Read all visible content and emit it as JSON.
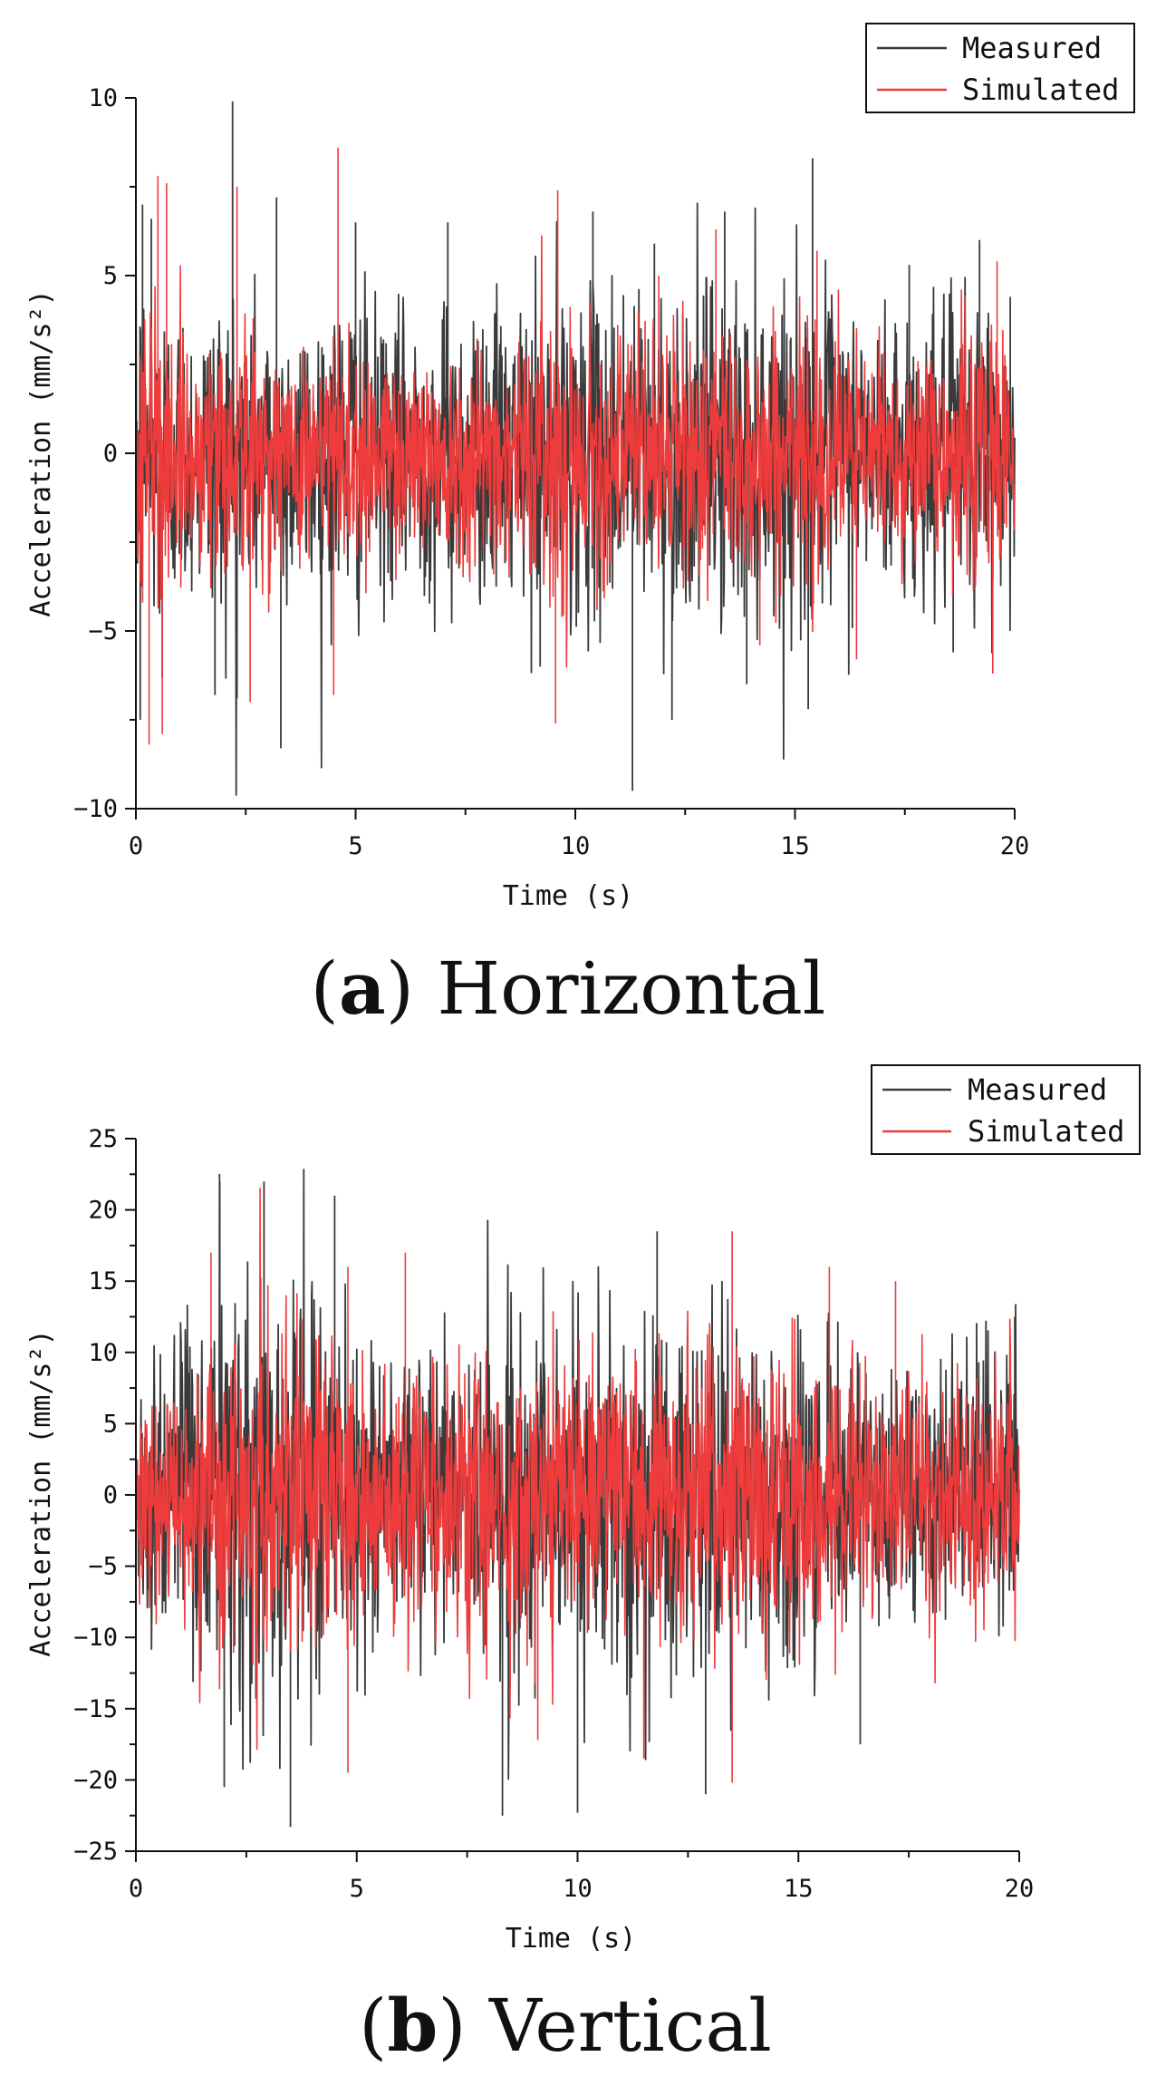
{
  "chart_data": [
    {
      "type": "line",
      "panel_label": "a",
      "caption": "Horizontal",
      "xlabel": "Time (s)",
      "ylabel": "Acceleration (mm/s²)",
      "xlim": [
        0,
        20
      ],
      "ylim": [
        -10,
        10
      ],
      "xticks": [
        0,
        5,
        10,
        15,
        20
      ],
      "yticks": [
        -10,
        -5,
        0,
        5,
        10
      ],
      "legend_position": "top-right",
      "series": [
        {
          "name": "Measured",
          "color": "#3a3a3a",
          "envelope": {
            "t": [
              0,
              0.5,
              1,
              1.5,
              2,
              2.5,
              3,
              3.5,
              4,
              4.5,
              5,
              5.5,
              6,
              6.5,
              7,
              7.5,
              8,
              8.5,
              9,
              9.5,
              10,
              10.5,
              11,
              11.5,
              12,
              12.5,
              13,
              13.5,
              14,
              14.5,
              15,
              15.5,
              16,
              16.5,
              17,
              17.5,
              18,
              18.5,
              19,
              19.5,
              20
            ],
            "amp": [
              5.0,
              4.5,
              3.8,
              3.6,
              4.5,
              4.2,
              3.6,
              3.6,
              3.7,
              4.0,
              4.1,
              3.5,
              3.4,
              3.5,
              3.7,
              3.8,
              3.6,
              3.8,
              3.9,
              4.3,
              3.9,
              4.1,
              4.4,
              4.2,
              4.1,
              4.2,
              4.3,
              4.5,
              4.2,
              4.1,
              4.0,
              4.1,
              3.9,
              3.6,
              3.6,
              3.5,
              3.5,
              3.6,
              4.2,
              4.0,
              3.3
            ]
          },
          "peaks": [
            [
              0.15,
              7.0
            ],
            [
              0.1,
              -7.5
            ],
            [
              0.35,
              6.6
            ],
            [
              0.6,
              -6.3
            ],
            [
              1.8,
              -6.8
            ],
            [
              2.2,
              9.9
            ],
            [
              2.3,
              -6.9
            ],
            [
              3.3,
              -8.3
            ],
            [
              3.2,
              7.2
            ],
            [
              5.0,
              6.5
            ],
            [
              7.1,
              6.5
            ],
            [
              9.2,
              -6.0
            ],
            [
              10.4,
              6.8
            ],
            [
              11.3,
              -9.5
            ],
            [
              11.8,
              5.9
            ],
            [
              12.2,
              -7.5
            ],
            [
              13.4,
              6.8
            ],
            [
              13.9,
              -6.5
            ],
            [
              15.4,
              8.3
            ],
            [
              15.3,
              -7.2
            ],
            [
              17.6,
              5.3
            ],
            [
              18.6,
              -5.6
            ],
            [
              19.2,
              6.0
            ],
            [
              19.9,
              4.4
            ]
          ]
        },
        {
          "name": "Simulated",
          "color": "#ee3b3b",
          "envelope": {
            "t": [
              0,
              0.5,
              1,
              1.5,
              2,
              2.5,
              3,
              3.5,
              4,
              4.5,
              5,
              5.5,
              6,
              6.5,
              7,
              7.5,
              8,
              8.5,
              9,
              9.5,
              10,
              10.5,
              11,
              11.5,
              12,
              12.5,
              13,
              13.5,
              14,
              14.5,
              15,
              15.5,
              16,
              16.5,
              17,
              17.5,
              18,
              18.5,
              19,
              19.5,
              20
            ],
            "amp": [
              4.2,
              3.8,
              2.8,
              2.6,
              3.6,
              3.2,
              2.6,
              2.5,
              2.7,
              3.0,
              3.3,
              2.5,
              2.4,
              2.5,
              2.7,
              2.8,
              2.6,
              2.8,
              3.0,
              4.0,
              3.0,
              3.0,
              3.1,
              3.0,
              3.0,
              3.1,
              3.2,
              3.4,
              3.1,
              3.0,
              3.0,
              3.1,
              2.9,
              2.6,
              2.6,
              2.5,
              2.6,
              2.8,
              3.6,
              3.4,
              2.4
            ]
          },
          "peaks": [
            [
              0.3,
              -8.2
            ],
            [
              0.5,
              7.8
            ],
            [
              0.7,
              7.6
            ],
            [
              0.6,
              -7.9
            ],
            [
              2.3,
              7.5
            ],
            [
              2.6,
              -7.0
            ],
            [
              4.6,
              8.6
            ],
            [
              4.5,
              -6.8
            ],
            [
              9.6,
              7.4
            ],
            [
              9.55,
              -7.6
            ],
            [
              11.9,
              5.0
            ],
            [
              13.2,
              6.3
            ],
            [
              14.2,
              -5.4
            ],
            [
              15.5,
              5.7
            ],
            [
              16.4,
              -5.8
            ],
            [
              19.6,
              5.4
            ],
            [
              19.5,
              -6.2
            ]
          ]
        }
      ]
    },
    {
      "type": "line",
      "panel_label": "b",
      "caption": "Vertical",
      "xlabel": "Time (s)",
      "ylabel": "Acceleration (mm/s²)",
      "xlim": [
        0,
        20
      ],
      "ylim": [
        -25,
        25
      ],
      "xticks": [
        0,
        5,
        10,
        15,
        20
      ],
      "yticks": [
        -25,
        -20,
        -15,
        -10,
        -5,
        0,
        5,
        10,
        15,
        20,
        25
      ],
      "legend_position": "top-right",
      "series": [
        {
          "name": "Measured",
          "color": "#3a3a3a",
          "envelope": {
            "t": [
              0,
              0.5,
              1,
              1.5,
              2,
              2.5,
              3,
              3.5,
              4,
              4.5,
              5,
              5.5,
              6,
              6.5,
              7,
              7.5,
              8,
              8.5,
              9,
              9.5,
              10,
              10.5,
              11,
              11.5,
              12,
              12.5,
              13,
              13.5,
              14,
              14.5,
              15,
              15.5,
              16,
              16.5,
              17,
              17.5,
              18,
              18.5,
              19,
              19.5,
              20
            ],
            "amp": [
              9,
              10,
              10,
              11,
              14,
              15,
              15,
              14,
              13,
              12,
              11,
              9,
              8,
              9,
              9,
              9,
              10,
              11,
              11,
              11,
              11,
              11,
              11,
              12,
              11,
              11,
              12,
              12,
              11,
              10,
              10,
              10,
              9,
              9,
              8,
              8,
              8,
              8,
              9,
              10,
              10
            ]
          },
          "peaks": [
            [
              1.9,
              22
            ],
            [
              2.9,
              22
            ],
            [
              2.0,
              -20.5
            ],
            [
              3.5,
              -23.3
            ],
            [
              4.5,
              21
            ],
            [
              8.3,
              -22.5
            ],
            [
              10.0,
              -22.3
            ],
            [
              11.8,
              18.5
            ],
            [
              12.9,
              -21
            ],
            [
              16.4,
              -17.5
            ],
            [
              19.9,
              12.5
            ]
          ]
        },
        {
          "name": "Simulated",
          "color": "#ee3b3b",
          "envelope": {
            "t": [
              0,
              0.5,
              1,
              1.5,
              2,
              2.5,
              3,
              3.5,
              4,
              4.5,
              5,
              5.5,
              6,
              6.5,
              7,
              7.5,
              8,
              8.5,
              9,
              9.5,
              10,
              10.5,
              11,
              11.5,
              12,
              12.5,
              13,
              13.5,
              14,
              14.5,
              15,
              15.5,
              16,
              16.5,
              17,
              17.5,
              18,
              18.5,
              19,
              19.5,
              20
            ],
            "amp": [
              6,
              7,
              7,
              8,
              10,
              11,
              10,
              10,
              10,
              10,
              10,
              8,
              7,
              8,
              8,
              8,
              8,
              9,
              9,
              9,
              9,
              9,
              9,
              9,
              9,
              9,
              10,
              10,
              9,
              9,
              9,
              9,
              8,
              8,
              8,
              7,
              7,
              7,
              8,
              8,
              7
            ]
          },
          "peaks": [
            [
              1.7,
              17
            ],
            [
              4.8,
              16
            ],
            [
              4.8,
              -19.5
            ],
            [
              6.1,
              17
            ],
            [
              9.1,
              -17.2
            ],
            [
              11.5,
              -18.5
            ],
            [
              13.5,
              18.5
            ],
            [
              13.5,
              -20.2
            ],
            [
              15.7,
              16
            ],
            [
              17.2,
              15
            ]
          ]
        }
      ]
    }
  ]
}
